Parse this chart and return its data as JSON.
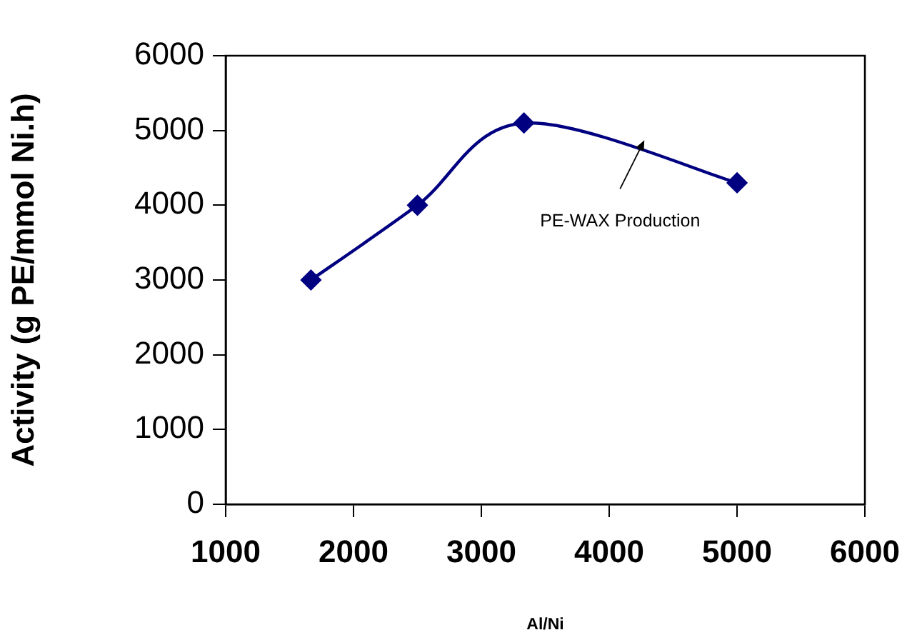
{
  "chart_data": {
    "type": "line",
    "xlabel": "Al/Ni",
    "ylabel": "Activity (g PE/mmol Ni.h)",
    "x": [
      1667,
      2500,
      3333,
      5000
    ],
    "series": [
      {
        "color": "#000080",
        "values": [
          3000,
          4000,
          5100,
          4300
        ]
      }
    ],
    "xlim": [
      1000,
      6000
    ],
    "xticks": [
      1000,
      2000,
      3000,
      4000,
      5000,
      6000
    ],
    "ylim": [
      0,
      6000
    ],
    "yticks": [
      0,
      1000,
      2000,
      3000,
      4000,
      5000,
      6000
    ],
    "marker": "diamond",
    "line_style": "solid",
    "grid": false,
    "legend": false,
    "annotations": [
      "PE-WAX Production"
    ]
  }
}
